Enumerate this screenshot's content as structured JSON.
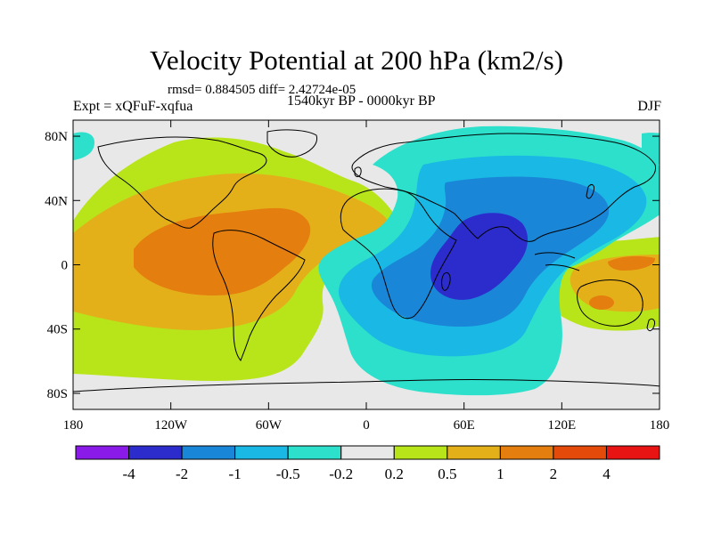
{
  "title": "Velocity Potential at 200 hPa (km2/s)",
  "stats": "rmsd= 0.884505 diff= 2.42724e-05",
  "experiment": "Expt = xQFuF-xqfua",
  "period": "1540kyr BP - 0000kyr BP",
  "season": "DJF",
  "map": {
    "projection": "cylindrical-equidistant",
    "lon_range": [
      -180,
      180
    ],
    "lat_range": [
      -90,
      90
    ],
    "lat_labels": [
      "80N",
      "40N",
      "0",
      "40S",
      "80S"
    ],
    "lat_values": [
      80,
      40,
      0,
      -40,
      -80
    ],
    "lon_labels": [
      "180",
      "120W",
      "60W",
      "0",
      "60E",
      "120E",
      "180"
    ],
    "lon_values": [
      -180,
      -120,
      -60,
      0,
      60,
      120,
      180
    ],
    "background_color": "#e8e8e8"
  },
  "colorbar": {
    "colors": [
      "#8a1ae8",
      "#2c2ccc",
      "#1a86d8",
      "#1ab8e4",
      "#2ce0cc",
      "#e8e8e8",
      "#b8e41a",
      "#e4b01a",
      "#e47e0e",
      "#e44a0a",
      "#e81414"
    ],
    "labels": [
      "-4",
      "-2",
      "-1",
      "-0.5",
      "-0.2",
      "0.2",
      "0.5",
      "1",
      "2",
      "4"
    ]
  }
}
